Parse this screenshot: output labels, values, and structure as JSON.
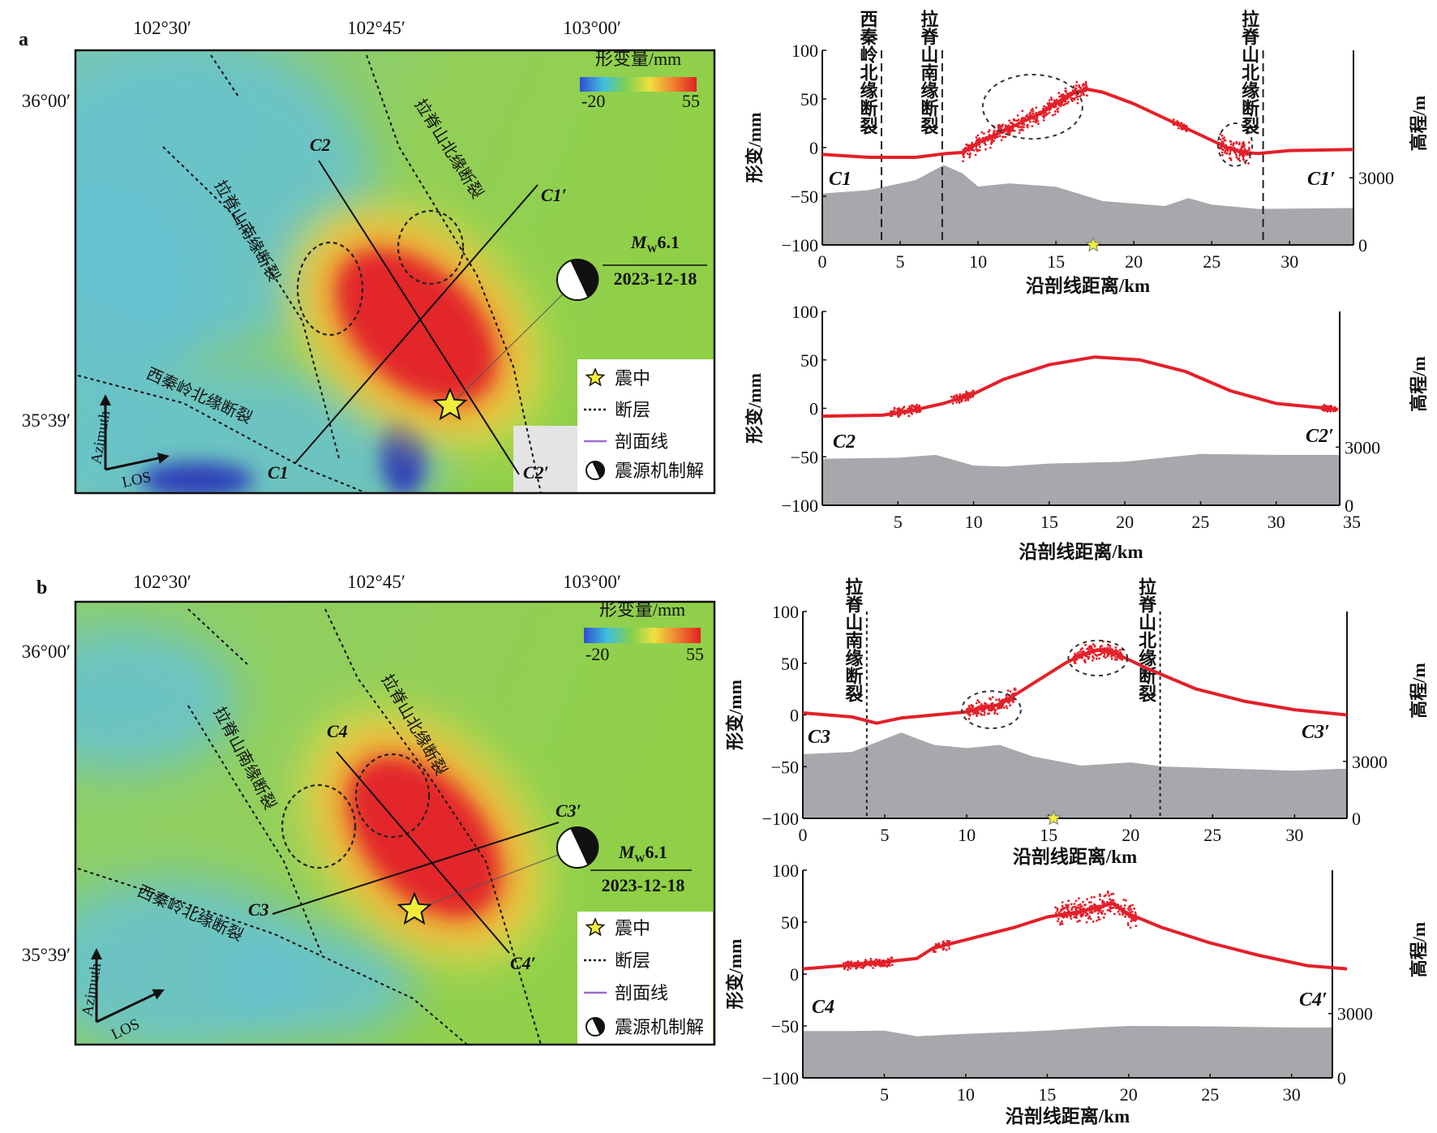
{
  "maps": [
    {
      "panel_label": "a",
      "lon_ticks": [
        "102°30′",
        "102°45′",
        "103°00′"
      ],
      "lat_ticks": [
        "36°00′",
        "35°39′"
      ],
      "colorbar": {
        "title": "形变量/mm",
        "min": "-20",
        "max": "55",
        "colors": [
          "#2f4fd0",
          "#3fbfe0",
          "#7fd050",
          "#f0e040",
          "#f08030",
          "#e02020"
        ]
      },
      "fault_labels": [
        "拉脊山北缘断裂",
        "拉脊山南缘断裂",
        "西秦岭北缘断裂"
      ],
      "profile_labels": [
        "C2",
        "C1′",
        "C1",
        "C2′"
      ],
      "event": {
        "magnitude_symbol": "M",
        "magnitude_sub": "W",
        "magnitude_value": "6.1",
        "date": "2023-12-18"
      },
      "legend": [
        {
          "icon": "star-icon",
          "label": "震中"
        },
        {
          "icon": "dotted-line-icon",
          "label": "断层"
        },
        {
          "icon": "purple-line-icon",
          "label": "剖面线"
        },
        {
          "icon": "beachball-icon",
          "label": "震源机制解"
        }
      ],
      "arrows": {
        "azimuth": "Azimuth",
        "los": "LOS"
      }
    },
    {
      "panel_label": "b",
      "lon_ticks": [
        "102°30′",
        "102°45′",
        "103°00′"
      ],
      "lat_ticks": [
        "36°00′",
        "35°39′"
      ],
      "colorbar": {
        "title": "形变量/mm",
        "min": "-20",
        "max": "55",
        "colors": [
          "#2f4fd0",
          "#3fbfe0",
          "#7fd050",
          "#f0e040",
          "#f08030",
          "#e02020"
        ]
      },
      "fault_labels": [
        "拉脊山北缘断裂",
        "拉脊山南缘断裂",
        "西秦岭北缘断裂"
      ],
      "profile_labels": [
        "C4",
        "C3′",
        "C3",
        "C4′"
      ],
      "event": {
        "magnitude_symbol": "M",
        "magnitude_sub": "W",
        "magnitude_value": "6.1",
        "date": "2023-12-18"
      },
      "legend": [
        {
          "icon": "star-icon",
          "label": "震中"
        },
        {
          "icon": "dotted-line-icon",
          "label": "断层"
        },
        {
          "icon": "purple-line-icon",
          "label": "剖面线"
        },
        {
          "icon": "beachball-icon",
          "label": "震源机制解"
        }
      ],
      "arrows": {
        "azimuth": "Azimuth",
        "los": "LOS"
      }
    }
  ],
  "colors": {
    "deformation": "#e3202a",
    "elevation": "#a8a8ac",
    "profile_line": "#9b6bd0",
    "epicenter": "#f2ec3a"
  },
  "chart_data": [
    {
      "type": "line",
      "title": "",
      "xlabel": "沿剖线距离/km",
      "ylabel": "形变/mm",
      "y2label": "高程/m",
      "xlim": [
        0,
        34.1
      ],
      "ylim": [
        -100,
        100
      ],
      "y2lim": [
        0,
        8700
      ],
      "xticks": [
        0,
        5,
        10,
        15,
        20,
        25,
        30
      ],
      "yticks": [
        -100,
        -50,
        0,
        50,
        100
      ],
      "y2ticks": [
        0,
        3000
      ],
      "grid": false,
      "endpoints": [
        "C1",
        "C1′"
      ],
      "deformation": {
        "x": [
          0,
          3,
          6,
          8,
          9,
          10,
          12,
          14,
          16,
          17,
          18,
          20,
          22,
          24,
          26,
          27,
          28,
          30,
          34.1
        ],
        "y": [
          -7,
          -10,
          -10,
          -6,
          -5,
          5,
          20,
          35,
          55,
          60,
          57,
          45,
          30,
          15,
          0,
          -5,
          -6,
          -3,
          -2
        ]
      },
      "noisy_segments": [
        {
          "x": [
            9,
            17
          ],
          "spread": 12
        },
        {
          "x": [
            22.5,
            23.5
          ],
          "spread": 4
        },
        {
          "x": [
            25.5,
            27.5
          ],
          "spread": 14
        }
      ],
      "elevation": {
        "x": [
          0,
          3,
          6,
          7.8,
          9,
          10,
          12,
          15,
          18,
          20,
          22,
          23.5,
          25,
          28,
          34.1
        ],
        "y": [
          2300,
          2450,
          2900,
          3570,
          3200,
          2610,
          2750,
          2600,
          1960,
          1850,
          1740,
          2090,
          1800,
          1610,
          1650
        ]
      },
      "fault_markers": [
        {
          "x": 3.8,
          "label": "西秦岭北缘断裂"
        },
        {
          "x": 7.7,
          "label": "拉脊山南缘断裂"
        },
        {
          "x": 28.3,
          "label": "拉脊山北缘断裂"
        }
      ],
      "epicenter_x": 17.4,
      "highlight_ellipses": [
        {
          "x": 13.5,
          "y": 42,
          "rx": 3.2,
          "ry": 33
        },
        {
          "x": 26.5,
          "y": 3,
          "rx": 1.1,
          "ry": 22
        }
      ]
    },
    {
      "type": "line",
      "title": "",
      "xlabel": "沿剖线距离/km",
      "ylabel": "形变/mm",
      "y2label": "高程/m",
      "xlim": [
        0,
        35
      ],
      "ylim": [
        -100,
        100
      ],
      "y2lim": [
        0,
        10000
      ],
      "xticks": [
        5,
        10,
        15,
        20,
        25,
        30,
        35
      ],
      "yticks": [
        -100,
        -50,
        0,
        50,
        100
      ],
      "y2ticks": [
        0,
        3000
      ],
      "grid": false,
      "endpoints": [
        "C2",
        "C2′"
      ],
      "deformation": {
        "x": [
          0,
          4,
          6,
          8,
          10,
          12,
          15,
          18,
          21,
          24,
          27,
          30,
          34.1
        ],
        "y": [
          -8,
          -7,
          -2,
          5,
          15,
          30,
          45,
          53,
          50,
          38,
          18,
          5,
          -1
        ]
      },
      "noisy_segments": [
        {
          "x": [
            4.5,
            6.5
          ],
          "spread": 6
        },
        {
          "x": [
            8.5,
            10
          ],
          "spread": 6
        },
        {
          "x": [
            33,
            34
          ],
          "spread": 4
        }
      ],
      "elevation": {
        "x": [
          0,
          5,
          7.5,
          10,
          12,
          15,
          20,
          25,
          30,
          34.2
        ],
        "y": [
          2400,
          2450,
          2600,
          2050,
          2000,
          2150,
          2250,
          2650,
          2600,
          2600
        ]
      },
      "fault_markers": [],
      "epicenter_x": null,
      "highlight_ellipses": []
    },
    {
      "type": "line",
      "title": "",
      "xlabel": "沿剖线距离/km",
      "ylabel": "形变/mm",
      "y2label": "高程/m",
      "xlim": [
        0,
        33.2
      ],
      "ylim": [
        -100,
        100
      ],
      "y2lim": [
        0,
        10900
      ],
      "xticks": [
        0,
        5,
        10,
        15,
        20,
        25,
        30
      ],
      "yticks": [
        -100,
        -50,
        0,
        50,
        100
      ],
      "y2ticks": [
        0,
        3000
      ],
      "grid": false,
      "endpoints": [
        "C3",
        "C3′"
      ],
      "deformation": {
        "x": [
          0,
          3,
          4.5,
          6,
          8,
          10,
          12,
          14,
          16,
          17,
          18,
          19,
          21,
          24,
          27,
          30,
          33.2
        ],
        "y": [
          2,
          -2,
          -8,
          -3,
          0,
          3,
          10,
          30,
          50,
          58,
          63,
          60,
          45,
          25,
          13,
          5,
          0
        ]
      },
      "noisy_segments": [
        {
          "x": [
            10,
            13
          ],
          "spread": 10
        },
        {
          "x": [
            16.5,
            19.5
          ],
          "spread": 10
        }
      ],
      "elevation": {
        "x": [
          0,
          3,
          6,
          8,
          10,
          12,
          14,
          17,
          20,
          22,
          26,
          30,
          33.2
        ],
        "y": [
          3380,
          3500,
          4520,
          3870,
          3700,
          3870,
          3270,
          2780,
          2950,
          2730,
          2620,
          2510,
          2620
        ]
      },
      "fault_markers": [
        {
          "x": 3.9,
          "label": "拉脊山南缘断裂"
        },
        {
          "x": 21.8,
          "label": "拉脊山北缘断裂"
        }
      ],
      "epicenter_x": 15.3,
      "highlight_ellipses": [
        {
          "x": 11.5,
          "y": 5,
          "rx": 1.8,
          "ry": 18
        },
        {
          "x": 18,
          "y": 55,
          "rx": 1.8,
          "ry": 17
        }
      ]
    },
    {
      "type": "line",
      "title": "",
      "xlabel": "沿剖线距离/km",
      "ylabel": "形变/mm",
      "y2label": "高程/m",
      "xlim": [
        0,
        33.4
      ],
      "ylim": [
        -100,
        100
      ],
      "y2lim": [
        0,
        9680
      ],
      "xticks": [
        5,
        10,
        15,
        20,
        25,
        30
      ],
      "yticks": [
        -100,
        -50,
        0,
        50,
        100
      ],
      "y2ticks": [
        0,
        3000
      ],
      "grid": false,
      "endpoints": [
        "C4",
        "C4′"
      ],
      "deformation": {
        "x": [
          0,
          4,
          7,
          8,
          10,
          13,
          15,
          17,
          19,
          20,
          22,
          25,
          28,
          31,
          33.4
        ],
        "y": [
          5,
          10,
          15,
          25,
          33,
          45,
          55,
          60,
          68,
          58,
          45,
          30,
          18,
          8,
          5
        ]
      },
      "noisy_segments": [
        {
          "x": [
            2.5,
            5.5
          ],
          "spread": 5
        },
        {
          "x": [
            8,
            9
          ],
          "spread": 6
        },
        {
          "x": [
            15.5,
            20.5
          ],
          "spread": 14
        }
      ],
      "elevation": {
        "x": [
          0,
          3,
          5,
          7,
          10,
          15,
          18,
          20,
          25,
          30,
          32.5
        ],
        "y": [
          2180,
          2180,
          2200,
          1940,
          2050,
          2200,
          2350,
          2420,
          2400,
          2350,
          2350
        ]
      },
      "fault_markers": [],
      "epicenter_x": null,
      "highlight_ellipses": []
    }
  ]
}
